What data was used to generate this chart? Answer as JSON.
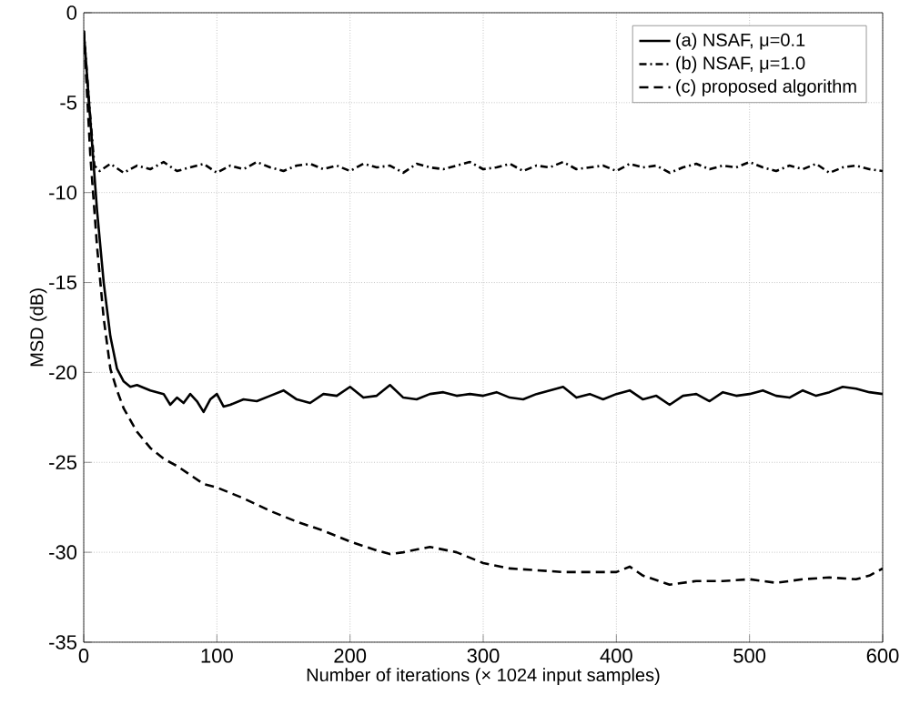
{
  "chart_data": {
    "type": "line",
    "xlabel": "Number of iterations (× 1024 input samples)",
    "ylabel": "MSD (dB)",
    "xlim": [
      0,
      600
    ],
    "ylim": [
      -35,
      0
    ],
    "xticks": [
      0,
      100,
      200,
      300,
      400,
      500,
      600
    ],
    "yticks": [
      -35,
      -30,
      -25,
      -20,
      -15,
      -10,
      -5,
      0
    ],
    "grid": true,
    "legend": "top right",
    "series": [
      {
        "name": "(a) NSAF, μ=0.1",
        "color": "#000000",
        "line_style": "solid",
        "x": [
          0,
          5,
          10,
          15,
          20,
          25,
          30,
          35,
          40,
          50,
          60,
          65,
          70,
          75,
          80,
          85,
          90,
          95,
          100,
          105,
          110,
          120,
          130,
          140,
          150,
          160,
          170,
          180,
          190,
          200,
          210,
          220,
          230,
          240,
          250,
          260,
          270,
          280,
          290,
          300,
          310,
          320,
          330,
          340,
          350,
          360,
          370,
          380,
          390,
          400,
          410,
          420,
          430,
          440,
          450,
          460,
          470,
          480,
          490,
          500,
          510,
          520,
          530,
          540,
          550,
          560,
          570,
          580,
          590,
          600
        ],
        "values": [
          -1,
          -6,
          -11,
          -15,
          -18,
          -19.8,
          -20.5,
          -20.8,
          -20.7,
          -21,
          -21.2,
          -21.8,
          -21.4,
          -21.7,
          -21.2,
          -21.6,
          -22.2,
          -21.5,
          -21.2,
          -21.9,
          -21.8,
          -21.5,
          -21.6,
          -21.3,
          -21,
          -21.5,
          -21.7,
          -21.2,
          -21.3,
          -20.8,
          -21.4,
          -21.3,
          -20.7,
          -21.4,
          -21.5,
          -21.2,
          -21.1,
          -21.3,
          -21.2,
          -21.3,
          -21.1,
          -21.4,
          -21.5,
          -21.2,
          -21.0,
          -20.8,
          -21.4,
          -21.2,
          -21.5,
          -21.2,
          -21.0,
          -21.5,
          -21.3,
          -21.8,
          -21.3,
          -21.2,
          -21.6,
          -21.1,
          -21.3,
          -21.2,
          -21.0,
          -21.3,
          -21.4,
          -21.0,
          -21.3,
          -21.1,
          -20.8,
          -20.9,
          -21.1,
          -21.2
        ]
      },
      {
        "name": "(b) NSAF, μ=1.0",
        "color": "#000000",
        "line_style": "dashdot",
        "x": [
          0,
          4,
          8,
          12,
          20,
          30,
          40,
          50,
          60,
          70,
          80,
          90,
          100,
          110,
          120,
          130,
          140,
          150,
          160,
          170,
          180,
          190,
          200,
          210,
          220,
          230,
          240,
          250,
          260,
          270,
          280,
          290,
          300,
          310,
          320,
          330,
          340,
          350,
          360,
          370,
          380,
          390,
          400,
          410,
          420,
          430,
          440,
          450,
          460,
          470,
          480,
          490,
          500,
          510,
          520,
          530,
          540,
          550,
          560,
          570,
          580,
          590,
          600
        ],
        "values": [
          -1,
          -5,
          -8.5,
          -8.8,
          -8.4,
          -8.9,
          -8.5,
          -8.7,
          -8.3,
          -8.8,
          -8.6,
          -8.4,
          -8.9,
          -8.5,
          -8.7,
          -8.3,
          -8.6,
          -8.8,
          -8.5,
          -8.4,
          -8.7,
          -8.5,
          -8.8,
          -8.4,
          -8.6,
          -8.5,
          -8.9,
          -8.4,
          -8.6,
          -8.7,
          -8.5,
          -8.3,
          -8.7,
          -8.6,
          -8.4,
          -8.8,
          -8.5,
          -8.6,
          -8.3,
          -8.7,
          -8.6,
          -8.5,
          -8.8,
          -8.4,
          -8.6,
          -8.5,
          -8.9,
          -8.6,
          -8.4,
          -8.7,
          -8.5,
          -8.6,
          -8.3,
          -8.6,
          -8.8,
          -8.5,
          -8.7,
          -8.4,
          -8.9,
          -8.6,
          -8.5,
          -8.7,
          -8.8
        ]
      },
      {
        "name": "(c) proposed algorithm",
        "color": "#000000",
        "line_style": "dashed",
        "x": [
          0,
          5,
          10,
          15,
          20,
          25,
          30,
          40,
          50,
          60,
          70,
          80,
          90,
          100,
          120,
          140,
          150,
          160,
          180,
          200,
          220,
          230,
          240,
          260,
          280,
          300,
          320,
          340,
          360,
          380,
          400,
          410,
          420,
          440,
          460,
          480,
          500,
          520,
          540,
          560,
          580,
          590,
          600
        ],
        "values": [
          -1,
          -8,
          -13,
          -17,
          -19.8,
          -21,
          -22,
          -23.3,
          -24.2,
          -24.8,
          -25.2,
          -25.7,
          -26.2,
          -26.4,
          -27,
          -27.7,
          -28,
          -28.3,
          -28.8,
          -29.4,
          -29.9,
          -30.1,
          -30,
          -29.7,
          -30,
          -30.6,
          -30.9,
          -31,
          -31.1,
          -31.1,
          -31.1,
          -30.8,
          -31.3,
          -31.8,
          -31.6,
          -31.6,
          -31.5,
          -31.7,
          -31.5,
          -31.4,
          -31.5,
          -31.3,
          -30.9
        ]
      }
    ]
  }
}
